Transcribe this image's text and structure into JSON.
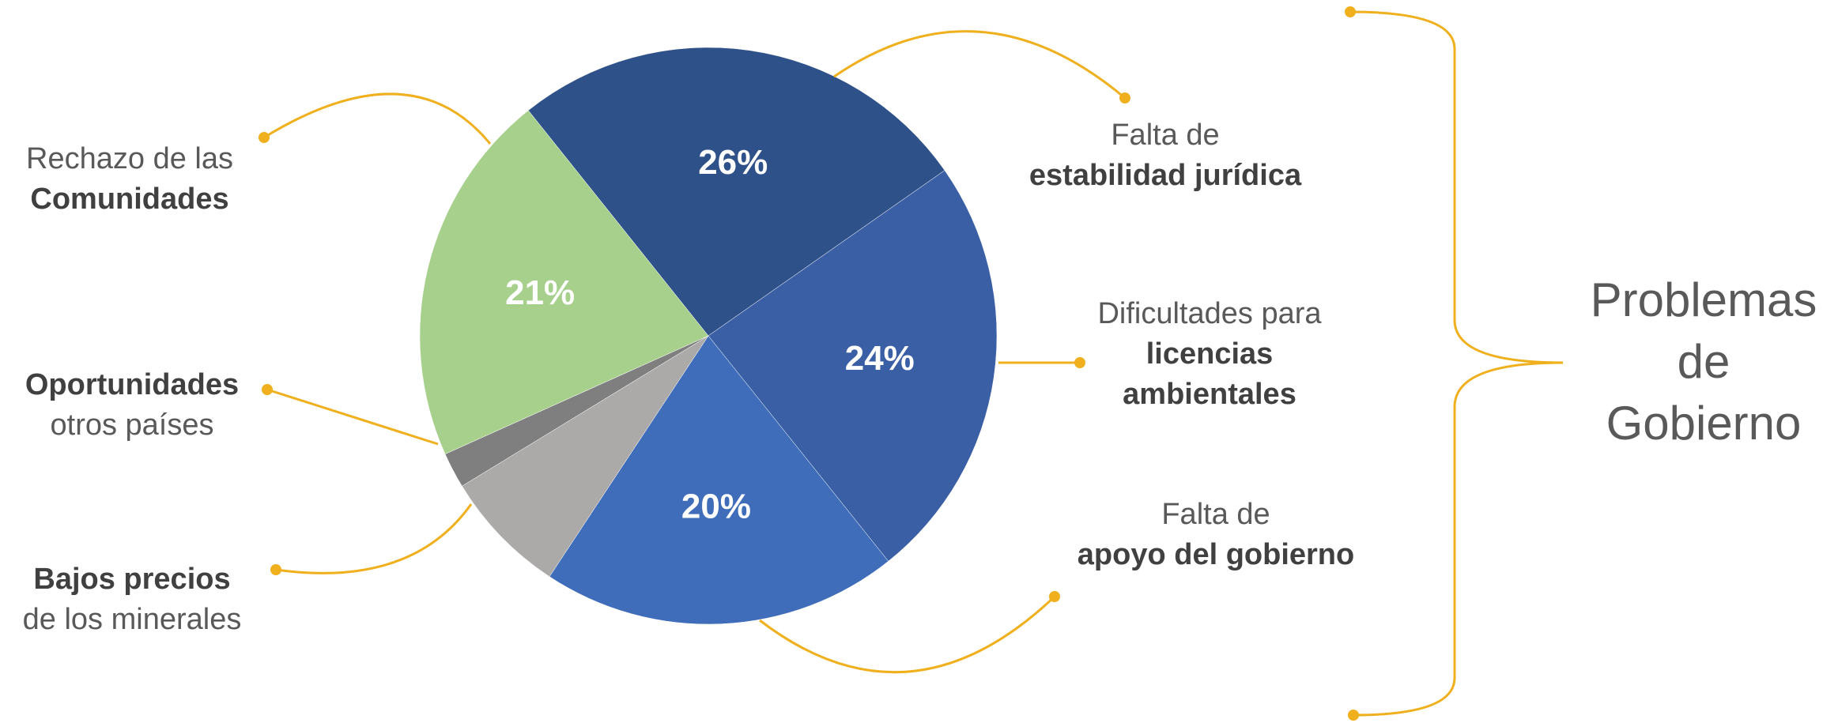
{
  "chart_data": {
    "type": "pie",
    "categories": [
      [
        "Falta de",
        "estabilidad jurídica"
      ],
      [
        "Dificultades para",
        "licencias",
        "ambientales"
      ],
      [
        "Falta de",
        "apoyo del gobierno"
      ],
      [
        "Bajos precios",
        "de los minerales"
      ],
      [
        "Oportunidades",
        "otros países"
      ],
      [
        "Rechazo de las",
        "Comunidades"
      ]
    ],
    "bold_lines": [
      [
        false,
        true
      ],
      [
        false,
        true,
        true
      ],
      [
        false,
        true
      ],
      [
        true,
        false
      ],
      [
        true,
        false
      ],
      [
        false,
        true
      ]
    ],
    "values": [
      26,
      24,
      20,
      7,
      2,
      21
    ],
    "value_labels": [
      "26%",
      "24%",
      "20%",
      null,
      null,
      "21%"
    ],
    "colors": [
      "#2f5189",
      "#3a5fa5",
      "#3f6dba",
      "#acaaa9",
      "#7f7f7f",
      "#a8d08d"
    ],
    "connector_color": "#f0b01e",
    "annotation": [
      "Problemas",
      "de",
      "Gobierno"
    ]
  }
}
